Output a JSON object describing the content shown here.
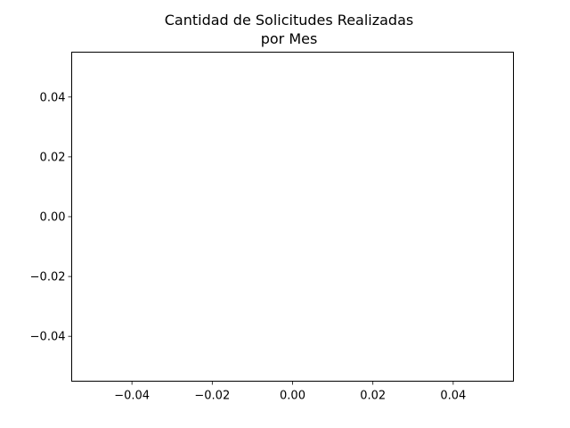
{
  "chart_data": {
    "type": "line",
    "title": [
      "Cantidad de Solicitudes Realizadas",
      "por Mes"
    ],
    "xlabel": "",
    "ylabel": "",
    "x": [],
    "series": [
      {
        "values": []
      }
    ],
    "xlim": [
      -0.055,
      0.055
    ],
    "ylim": [
      -0.055,
      0.055
    ],
    "x_ticks": [
      "−0.04",
      "−0.02",
      "0.00",
      "0.02",
      "0.04"
    ],
    "x_tick_values": [
      -0.04,
      -0.02,
      0.0,
      0.02,
      0.04
    ],
    "y_ticks": [
      "−0.04",
      "−0.02",
      "0.00",
      "0.02",
      "0.04"
    ],
    "y_tick_values": [
      -0.04,
      -0.02,
      0.0,
      0.02,
      0.04
    ],
    "grid": false,
    "legend": "none",
    "colors": {
      "axes": "#000000",
      "background": "#ffffff"
    }
  }
}
